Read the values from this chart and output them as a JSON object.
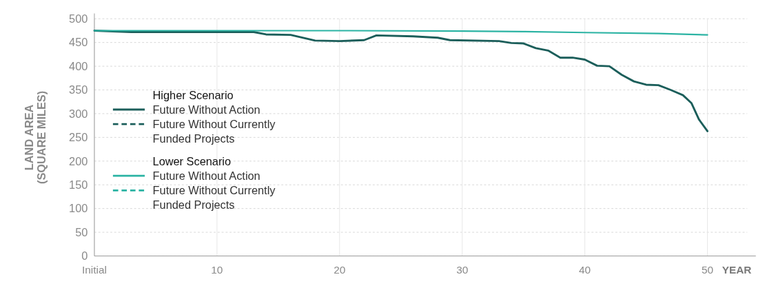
{
  "chart_data": {
    "type": "line",
    "xlabel": "YEAR",
    "ylabel": "LAND AREA (SQUARE MILES)",
    "xlim": [
      0,
      50
    ],
    "xticks": [
      {
        "value": 0,
        "label": "Initial"
      },
      10,
      20,
      30,
      40,
      50
    ],
    "ylim": [
      0,
      500
    ],
    "yticks": [
      0,
      50,
      100,
      150,
      200,
      250,
      300,
      350,
      400,
      450,
      500
    ],
    "grid": true,
    "legend": "left",
    "marker": "none",
    "annotations": [
      "Higher Scenario",
      "Lower Scenario"
    ],
    "series": [
      {
        "name": "Future Without Action",
        "color": "#1b5e5a",
        "line_style": "solid",
        "x": [
          0,
          3,
          13,
          14,
          16,
          18,
          20,
          22,
          23,
          26,
          28,
          29,
          33,
          34,
          35,
          36,
          37,
          38,
          39,
          40,
          41,
          42,
          43,
          44,
          45,
          46,
          47,
          48,
          48.7,
          49.3,
          50
        ],
        "values": [
          475,
          472,
          472,
          467,
          466,
          454,
          453,
          455,
          465,
          463,
          460,
          455,
          453,
          449,
          448,
          438,
          433,
          418,
          418,
          414,
          401,
          400,
          382,
          368,
          361,
          360,
          350,
          339,
          322,
          288,
          263
        ]
      },
      {
        "name": "Future Without Currently Funded Projects",
        "color": "#1b5e5a",
        "line_style": "dashed"
      },
      {
        "name": "Future Without Action",
        "color": "#2bb3a3",
        "line_style": "solid",
        "x": [
          0,
          10,
          20,
          30,
          35,
          40,
          46,
          50
        ],
        "values": [
          475,
          475,
          475,
          474,
          473,
          471,
          469,
          466
        ]
      },
      {
        "name": "Future Without Currently Funded Projects",
        "color": "#2bb3a3",
        "line_style": "dashed"
      }
    ]
  }
}
